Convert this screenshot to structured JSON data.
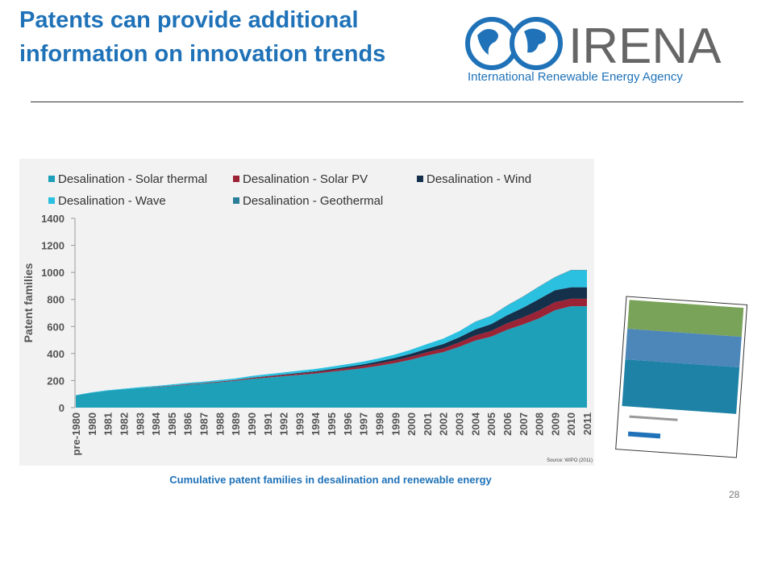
{
  "slide_title": "Patents can provide additional information on innovation trends",
  "logo": {
    "name": "IRENA",
    "tagline": "International Renewable Energy Agency"
  },
  "caption": "Cumulative patent families in desalination and renewable energy",
  "page_number": "28",
  "source": "Source: WIPO (2011)",
  "chart_data": {
    "type": "stacked_area",
    "ylabel": "Patent families",
    "categories": [
      "pre-1980",
      "1980",
      "1981",
      "1982",
      "1983",
      "1984",
      "1985",
      "1986",
      "1987",
      "1988",
      "1989",
      "1990",
      "1991",
      "1992",
      "1993",
      "1994",
      "1995",
      "1996",
      "1997",
      "1998",
      "1999",
      "2000",
      "2001",
      "2002",
      "2003",
      "2004",
      "2005",
      "2006",
      "2007",
      "2008",
      "2009",
      "2010",
      "2011"
    ],
    "ylim": [
      0,
      1400
    ],
    "yticks": [
      0,
      200,
      400,
      600,
      800,
      1000,
      1200,
      1400
    ],
    "series": [
      {
        "name": "Desalination - Solar thermal",
        "color": "#1ea0b8",
        "values": [
          90,
          110,
          125,
          135,
          145,
          150,
          160,
          170,
          178,
          188,
          198,
          212,
          222,
          232,
          242,
          252,
          265,
          278,
          292,
          310,
          330,
          355,
          385,
          410,
          450,
          495,
          525,
          575,
          615,
          660,
          720,
          750,
          750
        ]
      },
      {
        "name": "Desalination - Solar PV",
        "color": "#9b2336",
        "values": [
          0,
          0,
          0,
          0,
          0,
          3,
          3,
          4,
          4,
          5,
          6,
          7,
          8,
          9,
          10,
          11,
          12,
          14,
          16,
          18,
          20,
          22,
          25,
          28,
          32,
          38,
          42,
          48,
          52,
          58,
          60,
          55,
          55
        ]
      },
      {
        "name": "Desalination - Wind",
        "color": "#15304a",
        "values": [
          0,
          0,
          0,
          0,
          0,
          0,
          0,
          0,
          0,
          0,
          0,
          2,
          3,
          4,
          5,
          6,
          8,
          10,
          12,
          15,
          18,
          22,
          26,
          32,
          38,
          45,
          50,
          60,
          72,
          85,
          88,
          85,
          85
        ]
      },
      {
        "name": "Desalination - Wave",
        "color": "#2cc0e0",
        "values": [
          2,
          3,
          4,
          5,
          6,
          7,
          8,
          9,
          10,
          11,
          12,
          13,
          14,
          15,
          16,
          17,
          18,
          19,
          20,
          22,
          25,
          30,
          35,
          40,
          45,
          55,
          60,
          70,
          80,
          90,
          95,
          125,
          125
        ]
      },
      {
        "name": "Desalination - Geothermal",
        "color": "#2a7e99",
        "values": [
          0,
          0,
          0,
          0,
          0,
          0,
          0,
          0,
          0,
          0,
          0,
          0,
          0,
          0,
          0,
          0,
          0,
          0,
          0,
          0,
          0,
          0,
          0,
          0,
          0,
          2,
          2,
          3,
          3,
          3,
          3,
          3,
          3
        ]
      }
    ]
  }
}
